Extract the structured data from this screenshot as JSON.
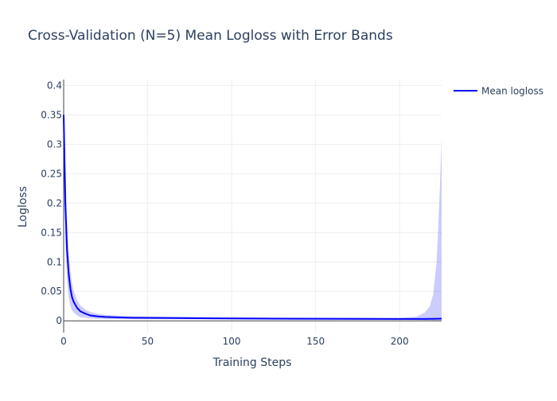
{
  "chart_data": {
    "type": "line",
    "title": "Cross-Validation (N=5) Mean Logloss with Error Bands",
    "xlabel": "Training Steps",
    "ylabel": "Logloss",
    "xlim": [
      0,
      225
    ],
    "ylim": [
      -0.02,
      0.41
    ],
    "x_ticks": [
      0,
      50,
      100,
      150,
      200
    ],
    "y_ticks": [
      0,
      0.05,
      0.1,
      0.15,
      0.2,
      0.25,
      0.3,
      0.35,
      0.4
    ],
    "grid": true,
    "legend_position": "top-right",
    "series": [
      {
        "name": "Mean logloss",
        "color": "#0000ff",
        "band_color": "rgba(0,0,255,0.2)",
        "x": [
          0,
          1,
          2,
          3,
          4,
          5,
          6,
          8,
          10,
          13,
          16,
          20,
          25,
          30,
          40,
          50,
          75,
          100,
          125,
          150,
          175,
          200,
          210,
          215,
          218,
          220,
          222,
          223,
          224,
          225
        ],
        "y": [
          0.35,
          0.2,
          0.12,
          0.08,
          0.055,
          0.04,
          0.032,
          0.022,
          0.016,
          0.012,
          0.009,
          0.0075,
          0.0065,
          0.006,
          0.0052,
          0.005,
          0.0045,
          0.004,
          0.0037,
          0.0035,
          0.0033,
          0.0031,
          0.0031,
          0.0032,
          0.0033,
          0.0034,
          0.0035,
          0.0035,
          0.0036,
          0.0036
        ],
        "upper": [
          0.35,
          0.26,
          0.17,
          0.12,
          0.085,
          0.062,
          0.05,
          0.035,
          0.026,
          0.019,
          0.015,
          0.012,
          0.01,
          0.009,
          0.0075,
          0.0072,
          0.0065,
          0.006,
          0.0055,
          0.0052,
          0.005,
          0.0048,
          0.007,
          0.014,
          0.025,
          0.045,
          0.1,
          0.16,
          0.23,
          0.31
        ],
        "lower": [
          0.35,
          0.14,
          0.07,
          0.04,
          0.025,
          0.018,
          0.014,
          0.009,
          0.006,
          0.005,
          0.004,
          0.0035,
          0.003,
          0.003,
          0.0029,
          0.0028,
          0.0026,
          0.0024,
          0.0022,
          0.002,
          0.0018,
          0.0016,
          0.0015,
          0.0012,
          0.001,
          0.0008,
          0.0006,
          0.0005,
          0.0005,
          0.0005
        ]
      }
    ]
  }
}
